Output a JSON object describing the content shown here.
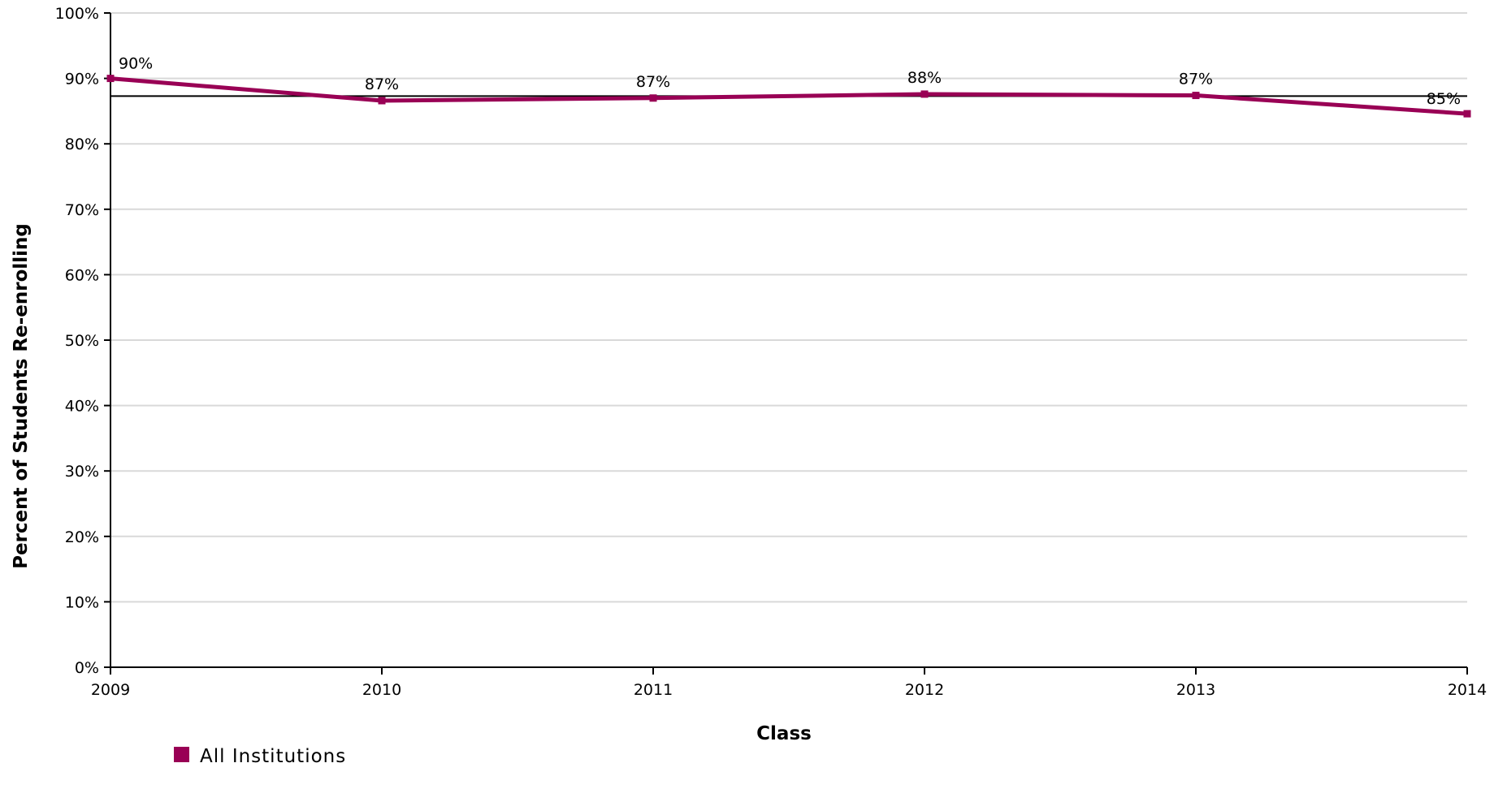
{
  "chart_data": {
    "type": "line",
    "x": [
      "2009",
      "2010",
      "2011",
      "2012",
      "2013",
      "2014"
    ],
    "series": [
      {
        "name": "All Institutions",
        "values": [
          90,
          86.6,
          87.0,
          87.6,
          87.4,
          84.6
        ],
        "labels": [
          "90%",
          "87%",
          "87%",
          "88%",
          "87%",
          "85%"
        ],
        "color": "#990055"
      }
    ],
    "reference_line": {
      "value": 87.3,
      "color": "#000000"
    },
    "xlabel": "Class",
    "ylabel": "Percent of Students Re-enrolling",
    "ylim": [
      0,
      100
    ],
    "yticks": [
      "0%",
      "10%",
      "20%",
      "30%",
      "40%",
      "50%",
      "60%",
      "70%",
      "80%",
      "90%",
      "100%"
    ],
    "grid": true,
    "legend_position": "bottom-left",
    "gridline_color": "#d9d9d9"
  }
}
